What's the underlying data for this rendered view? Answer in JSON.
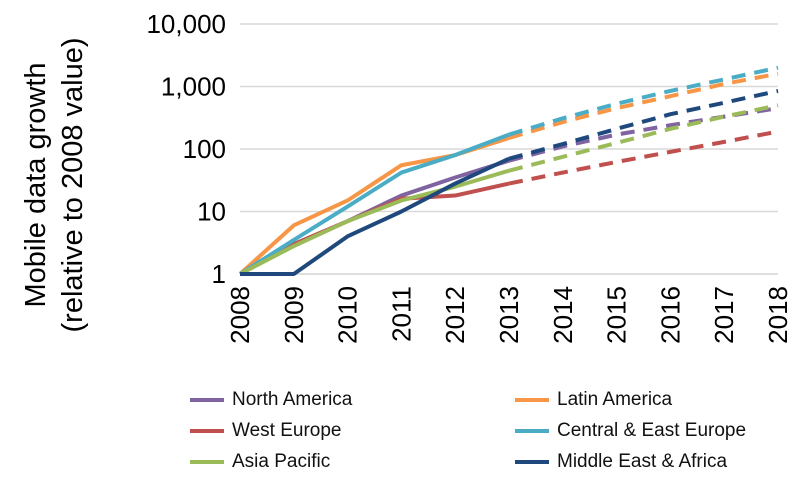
{
  "chart_data": {
    "type": "line",
    "yscale": "log",
    "ylabel_lines": [
      "Mobile data growth",
      "(relative to 2008 value)"
    ],
    "xlabel": "",
    "x": [
      "2008",
      "2009",
      "2010",
      "2011",
      "2012",
      "2013",
      "2014",
      "2015",
      "2016",
      "2017",
      "2018"
    ],
    "ylim": [
      1,
      10000
    ],
    "yticks": [
      1,
      10,
      100,
      1000,
      10000
    ],
    "ytick_labels": [
      "1",
      "10",
      "100",
      "1,000",
      "10,000"
    ],
    "solid_through": "2013",
    "dashed_from": "2013",
    "series": [
      {
        "name": "North America",
        "color": "#8064a2",
        "values": [
          1,
          3,
          7,
          18,
          35,
          65,
          110,
          170,
          240,
          330,
          450
        ]
      },
      {
        "name": "Latin America",
        "color": "#f79646",
        "values": [
          1,
          6,
          15,
          55,
          80,
          150,
          270,
          450,
          700,
          1100,
          1600
        ]
      },
      {
        "name": "West Europe",
        "color": "#c0504d",
        "values": [
          1,
          3,
          7,
          16,
          18,
          28,
          42,
          62,
          90,
          130,
          190
        ]
      },
      {
        "name": "Central & East Europe",
        "color": "#4bacc6",
        "values": [
          1,
          3.5,
          12,
          42,
          80,
          170,
          310,
          530,
          850,
          1300,
          2000
        ]
      },
      {
        "name": "Asia Pacific",
        "color": "#9bbb59",
        "values": [
          1,
          2.8,
          7,
          15,
          25,
          45,
          75,
          125,
          210,
          330,
          500
        ]
      },
      {
        "name": "Middle East & Africa",
        "color": "#1f497d",
        "values": [
          1,
          1,
          4,
          10,
          28,
          70,
          120,
          210,
          360,
          550,
          850
        ]
      }
    ]
  }
}
